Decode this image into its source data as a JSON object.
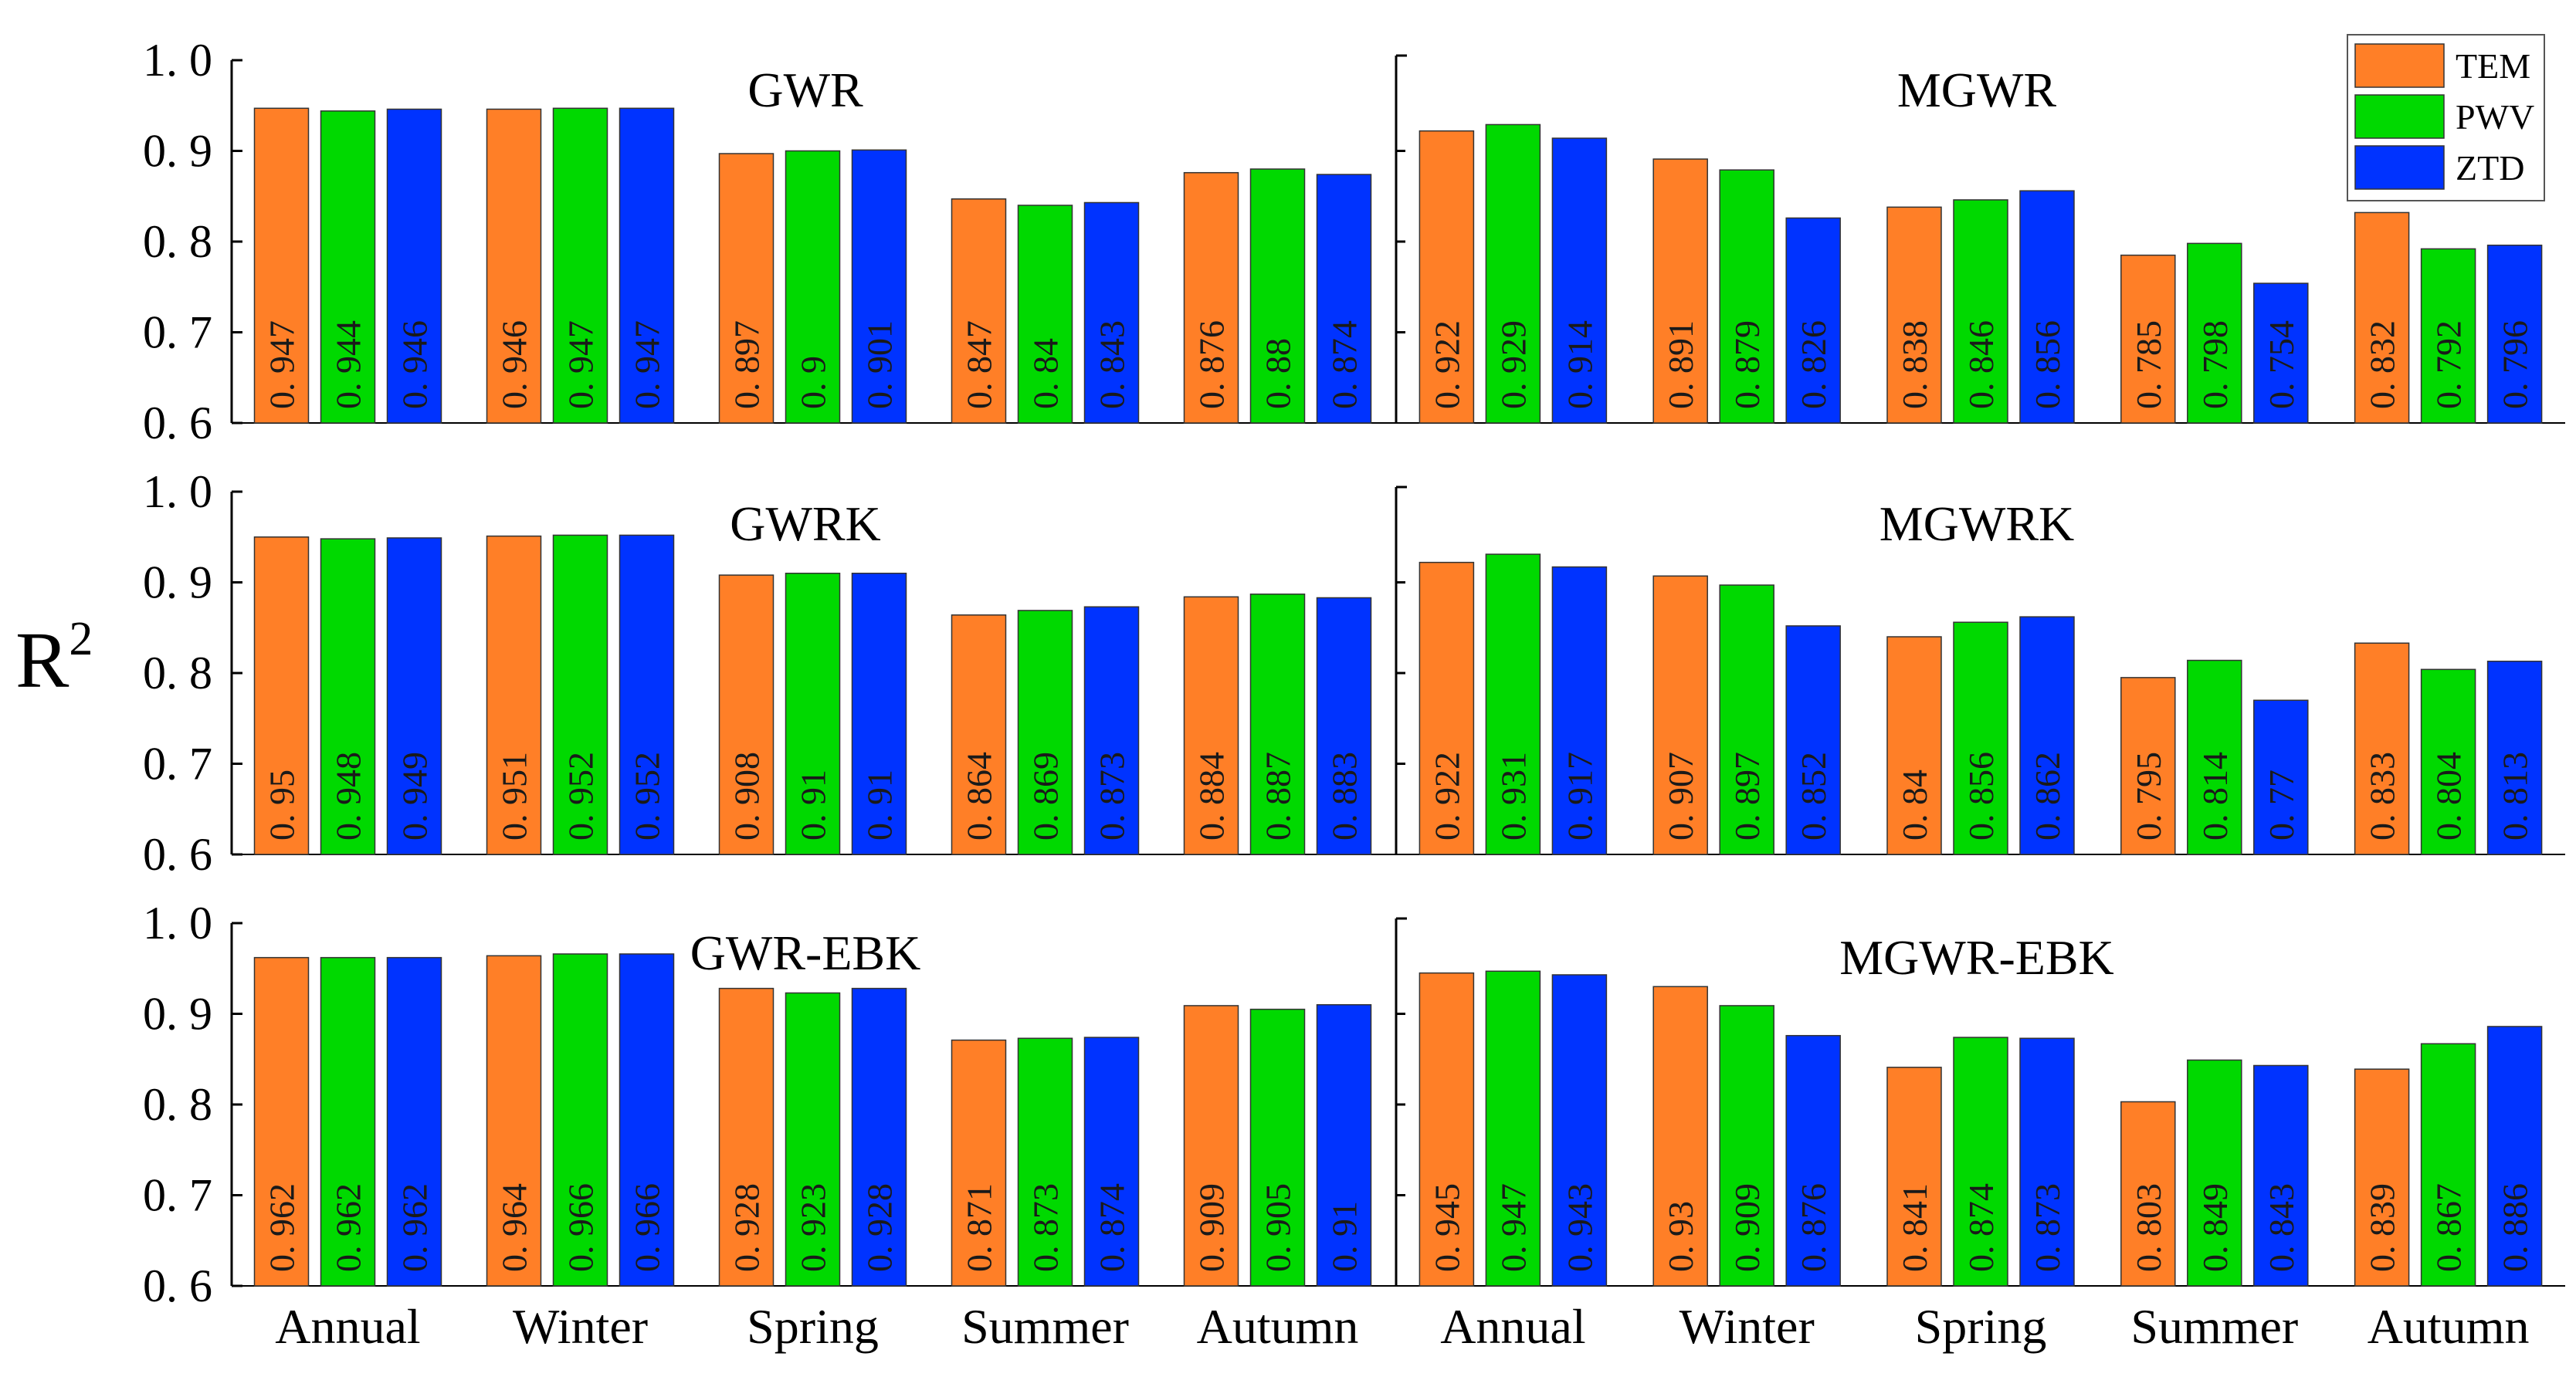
{
  "colors": {
    "TEM": "#ff7f27",
    "PWV": "#00d900",
    "ZTD": "#0033ff"
  },
  "chart_data": {
    "type": "bar",
    "ylabel": "R",
    "ylabel_sup": "2",
    "ylim": [
      0.6,
      1.0
    ],
    "yticks": [
      "1. 0",
      "0. 9",
      "0. 8",
      "0. 7",
      "0. 6"
    ],
    "categories": [
      "Annual",
      "Winter",
      "Spring",
      "Summer",
      "Autumn"
    ],
    "legend": {
      "position": "top-right",
      "entries": [
        "TEM",
        "PWV",
        "ZTD"
      ]
    },
    "panels": [
      {
        "row": 0,
        "col": 0,
        "title": "GWR",
        "series": [
          {
            "name": "TEM",
            "values": [
              0.947,
              0.946,
              0.897,
              0.847,
              0.876
            ],
            "labels": [
              "0. 947",
              "0. 946",
              "0. 897",
              "0. 847",
              "0. 876"
            ]
          },
          {
            "name": "PWV",
            "values": [
              0.944,
              0.947,
              0.9,
              0.84,
              0.88
            ],
            "labels": [
              "0. 944",
              "0. 947",
              "0. 9",
              "0. 84",
              "0. 88"
            ]
          },
          {
            "name": "ZTD",
            "values": [
              0.946,
              0.947,
              0.901,
              0.843,
              0.874
            ],
            "labels": [
              "0. 946",
              "0. 947",
              "0. 901",
              "0. 843",
              "0. 874"
            ]
          }
        ]
      },
      {
        "row": 0,
        "col": 1,
        "title": "MGWR",
        "series": [
          {
            "name": "TEM",
            "values": [
              0.922,
              0.891,
              0.838,
              0.785,
              0.832
            ],
            "labels": [
              "0. 922",
              "0. 891",
              "0. 838",
              "0. 785",
              "0. 832"
            ]
          },
          {
            "name": "PWV",
            "values": [
              0.929,
              0.879,
              0.846,
              0.798,
              0.792
            ],
            "labels": [
              "0. 929",
              "0. 879",
              "0. 846",
              "0. 798",
              "0. 792"
            ]
          },
          {
            "name": "ZTD",
            "values": [
              0.914,
              0.826,
              0.856,
              0.754,
              0.796
            ],
            "labels": [
              "0. 914",
              "0. 826",
              "0. 856",
              "0. 754",
              "0. 796"
            ]
          }
        ]
      },
      {
        "row": 1,
        "col": 0,
        "title": "GWRK",
        "series": [
          {
            "name": "TEM",
            "values": [
              0.95,
              0.951,
              0.908,
              0.864,
              0.884
            ],
            "labels": [
              "0. 95",
              "0. 951",
              "0. 908",
              "0. 864",
              "0. 884"
            ]
          },
          {
            "name": "PWV",
            "values": [
              0.948,
              0.952,
              0.91,
              0.869,
              0.887
            ],
            "labels": [
              "0. 948",
              "0. 952",
              "0. 91",
              "0. 869",
              "0. 887"
            ]
          },
          {
            "name": "ZTD",
            "values": [
              0.949,
              0.952,
              0.91,
              0.873,
              0.883
            ],
            "labels": [
              "0. 949",
              "0. 952",
              "0. 91",
              "0. 873",
              "0. 883"
            ]
          }
        ]
      },
      {
        "row": 1,
        "col": 1,
        "title": "MGWRK",
        "series": [
          {
            "name": "TEM",
            "values": [
              0.922,
              0.907,
              0.84,
              0.795,
              0.833
            ],
            "labels": [
              "0. 922",
              "0. 907",
              "0. 84",
              "0. 795",
              "0. 833"
            ]
          },
          {
            "name": "PWV",
            "values": [
              0.931,
              0.897,
              0.856,
              0.814,
              0.804
            ],
            "labels": [
              "0. 931",
              "0. 897",
              "0. 856",
              "0. 814",
              "0. 804"
            ]
          },
          {
            "name": "ZTD",
            "values": [
              0.917,
              0.852,
              0.862,
              0.77,
              0.813
            ],
            "labels": [
              "0. 917",
              "0. 852",
              "0. 862",
              "0. 77",
              "0. 813"
            ]
          }
        ]
      },
      {
        "row": 2,
        "col": 0,
        "title": "GWR-EBK",
        "series": [
          {
            "name": "TEM",
            "values": [
              0.962,
              0.964,
              0.928,
              0.871,
              0.909
            ],
            "labels": [
              "0. 962",
              "0. 964",
              "0. 928",
              "0. 871",
              "0. 909"
            ]
          },
          {
            "name": "PWV",
            "values": [
              0.962,
              0.966,
              0.923,
              0.873,
              0.905
            ],
            "labels": [
              "0. 962",
              "0. 966",
              "0. 923",
              "0. 873",
              "0. 905"
            ]
          },
          {
            "name": "ZTD",
            "values": [
              0.962,
              0.966,
              0.928,
              0.874,
              0.91
            ],
            "labels": [
              "0. 962",
              "0. 966",
              "0. 928",
              "0. 874",
              "0. 91"
            ]
          }
        ]
      },
      {
        "row": 2,
        "col": 1,
        "title": "MGWR-EBK",
        "series": [
          {
            "name": "TEM",
            "values": [
              0.945,
              0.93,
              0.841,
              0.803,
              0.839
            ],
            "labels": [
              "0. 945",
              "0. 93",
              "0. 841",
              "0. 803",
              "0. 839"
            ]
          },
          {
            "name": "PWV",
            "values": [
              0.947,
              0.909,
              0.874,
              0.849,
              0.867
            ],
            "labels": [
              "0. 947",
              "0. 909",
              "0. 874",
              "0. 849",
              "0. 867"
            ]
          },
          {
            "name": "ZTD",
            "values": [
              0.943,
              0.876,
              0.873,
              0.843,
              0.886
            ],
            "labels": [
              "0. 943",
              "0. 876",
              "0. 873",
              "0. 843",
              "0. 886"
            ]
          }
        ]
      }
    ]
  }
}
